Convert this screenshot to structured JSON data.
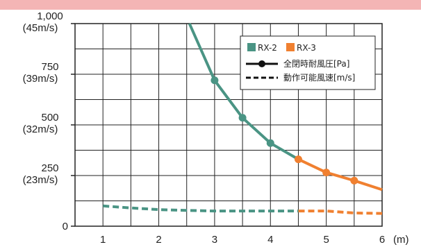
{
  "chart_data": {
    "type": "line",
    "x_ticks": [
      "1",
      "2",
      "3",
      "4",
      "5",
      "6"
    ],
    "x_unit": "(m)",
    "xlim": [
      0.5,
      6
    ],
    "ylim": [
      0,
      1000
    ],
    "y_ticks": [
      {
        "value": 0,
        "label": "0",
        "sub": ""
      },
      {
        "value": 250,
        "label": "250",
        "sub": "(23m/s)"
      },
      {
        "value": 500,
        "label": "500",
        "sub": "(32m/s)"
      },
      {
        "value": 750,
        "label": "750",
        "sub": "(39m/s)"
      },
      {
        "value": 1000,
        "label": "1,000",
        "sub": "(45m/s)"
      }
    ],
    "grid": true,
    "legend_position": "top-right",
    "models": [
      {
        "name": "RX-2",
        "color": "#4a9484"
      },
      {
        "name": "RX-3",
        "color": "#f08030"
      }
    ],
    "line_styles": [
      {
        "style": "solid-marker",
        "label": "全閉時耐風圧[Pa]"
      },
      {
        "style": "dashed",
        "label": "動作可能風速[m/s]"
      }
    ],
    "series": [
      {
        "model": "RX-2",
        "style": "solid-marker",
        "color": "#4a9484",
        "x": [
          2.55,
          3.0,
          3.5,
          4.0,
          4.5
        ],
        "y": [
          1000,
          720,
          535,
          410,
          330
        ],
        "markers": [
          false,
          true,
          true,
          true,
          false
        ]
      },
      {
        "model": "RX-3",
        "style": "solid-marker",
        "color": "#f08030",
        "x": [
          4.5,
          5.0,
          5.5,
          6.0
        ],
        "y": [
          330,
          265,
          225,
          180
        ],
        "markers": [
          true,
          true,
          true,
          false
        ]
      },
      {
        "model": "RX-2",
        "style": "dashed",
        "color": "#4a9484",
        "x": [
          1.0,
          1.5,
          2.0,
          2.5,
          3.0,
          3.5,
          4.0,
          4.5
        ],
        "y": [
          100,
          90,
          82,
          78,
          75,
          75,
          75,
          75
        ],
        "markers": [
          false,
          false,
          false,
          false,
          false,
          false,
          false,
          false
        ]
      },
      {
        "model": "RX-3",
        "style": "dashed",
        "color": "#f08030",
        "x": [
          4.5,
          5.0,
          5.5,
          6.0
        ],
        "y": [
          75,
          75,
          65,
          63
        ],
        "markers": [
          false,
          false,
          false,
          false
        ]
      }
    ]
  }
}
